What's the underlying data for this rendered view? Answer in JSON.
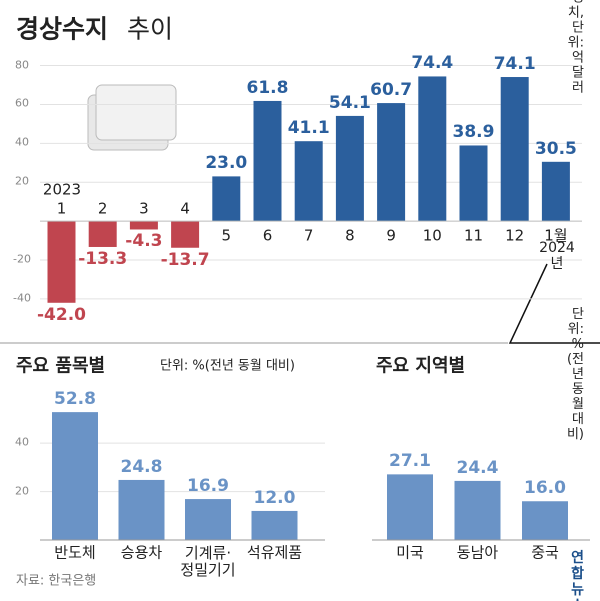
{
  "chart_data": [
    {
      "type": "bar",
      "title": "경상수지",
      "subtitle": "추이",
      "note": "잠정치, 단위: 억 달러",
      "categories": [
        "1",
        "2",
        "3",
        "4",
        "5",
        "6",
        "7",
        "8",
        "9",
        "10",
        "11",
        "12",
        "1월"
      ],
      "values": [
        -42.0,
        -13.3,
        -4.3,
        -13.7,
        23.0,
        61.8,
        41.1,
        54.1,
        60.7,
        74.4,
        38.9,
        74.1,
        30.5
      ],
      "value_labels": [
        "-42.0",
        "-13.3",
        "-4.3",
        "-13.7",
        "23.0",
        "61.8",
        "41.1",
        "54.1",
        "60.7",
        "74.4",
        "38.9",
        "74.1",
        "30.5"
      ],
      "color": "#2b5f9d",
      "negative_color": "#c0454f",
      "annotations": [
        {
          "text": "2023"
        },
        {
          "text": "2024년"
        }
      ],
      "ylim": [
        -56,
        88
      ],
      "yticks": [
        -40,
        -20,
        20,
        40,
        60,
        80
      ],
      "grid": true
    },
    {
      "type": "bar",
      "title": "주요 품목별",
      "note": "단위: %(전년 동월 대비)",
      "categories": [
        "반도체",
        "승용차",
        "기계류·\n정밀기기",
        "석유제품"
      ],
      "values": [
        52.8,
        24.8,
        16.9,
        12.0
      ],
      "value_labels": [
        "52.8",
        "24.8",
        "16.9",
        "12.0"
      ],
      "color": "#6a93c6",
      "ylim": [
        0,
        64
      ],
      "yticks": [
        20,
        40
      ],
      "grid": true
    },
    {
      "type": "bar",
      "title": "주요 지역별",
      "note": "단위: %\n(전년 동월 대비)",
      "categories": [
        "미국",
        "동남아",
        "중국"
      ],
      "values": [
        27.1,
        24.4,
        16.0
      ],
      "value_labels": [
        "27.1",
        "24.4",
        "16.0"
      ],
      "color": "#6a93c6",
      "ylim": [
        0,
        64
      ],
      "yticks": [],
      "grid": false
    }
  ],
  "source": "자료: 한국은행",
  "logo": "연합뉴스"
}
